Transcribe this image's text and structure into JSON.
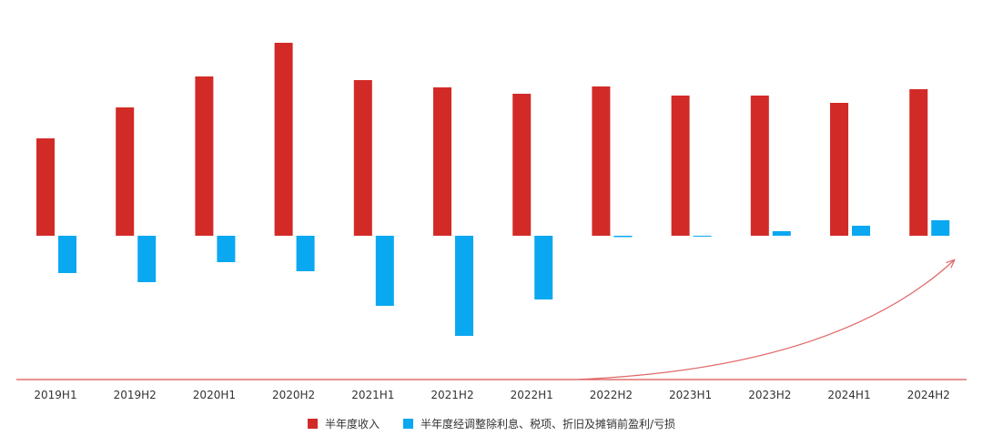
{
  "chart_data": {
    "type": "bar",
    "categories": [
      "2019H1",
      "2019H2",
      "2020H1",
      "2020H2",
      "2021H1",
      "2021H2",
      "2022H1",
      "2022H2",
      "2023H1",
      "2023H2",
      "2024H1",
      "2024H2"
    ],
    "series": [
      {
        "name": "半年度收入",
        "color": "#d22b27",
        "values": [
          107,
          141,
          175,
          212,
          171,
          163,
          156,
          164,
          154,
          154,
          146,
          161
        ]
      },
      {
        "name": "半年度经调整除利息、税项、折旧及摊销前盈利/亏损",
        "color": "#0aa8f0",
        "values": [
          -41,
          -51,
          -29,
          -39,
          -77,
          -110,
          -70,
          -1.5,
          -1,
          5,
          11,
          17
        ]
      }
    ],
    "xlabel": "",
    "ylabel": "",
    "ylim": [
      -160,
      214
    ],
    "grid": false,
    "legend_position": "bottom",
    "annotation": "trend-arrow"
  }
}
